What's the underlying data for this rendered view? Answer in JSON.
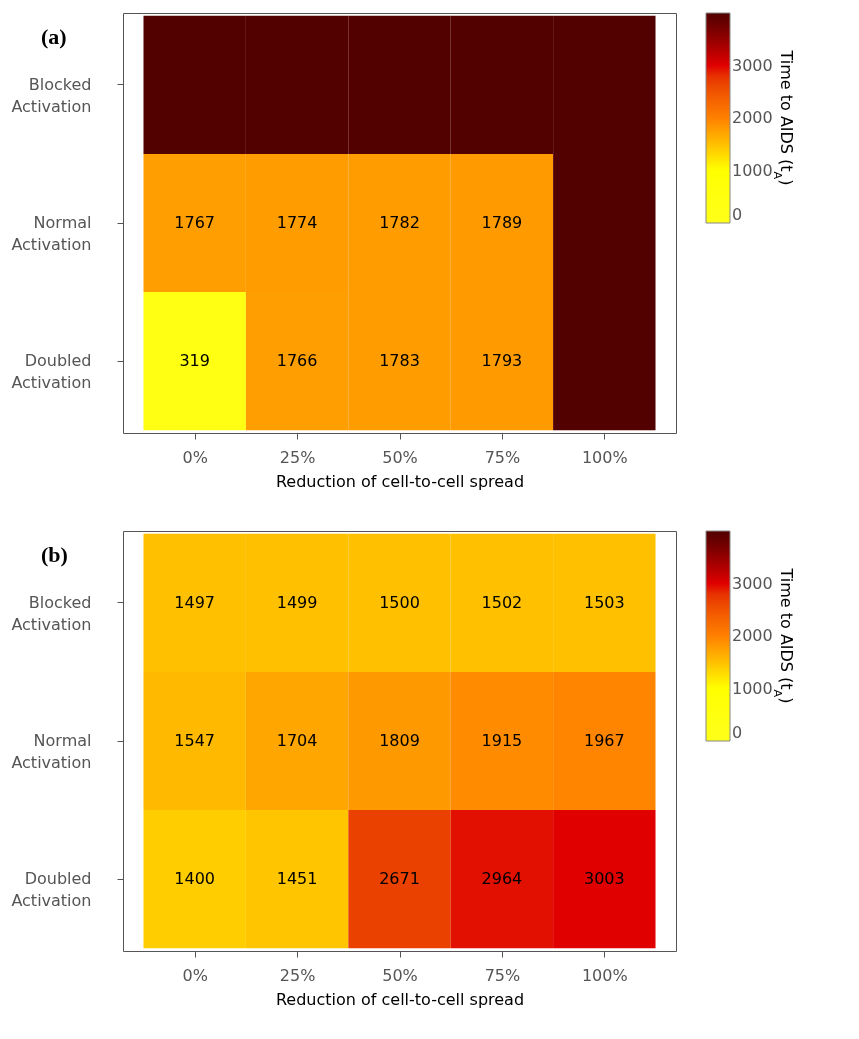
{
  "chart_data": [
    {
      "type": "heatmap",
      "title": "(a)",
      "xlabel": "Reduction of cell-to-cell spread",
      "clabel": "Time to AIDS (t$_{A}$)",
      "categories": [
        "0%",
        "25%",
        "50%",
        "75%",
        "100%"
      ],
      "y_categories": [
        "Blocked Activation",
        "Normal Activation",
        "Doubled Activation"
      ],
      "cells": [
        [
          4000,
          4000,
          4000,
          4000,
          4000
        ],
        [
          1767,
          1774,
          1782,
          1789,
          4000
        ],
        [
          319,
          1766,
          1783,
          1793,
          4000
        ]
      ],
      "cell_labels": [
        [
          null,
          null,
          null,
          null,
          null
        ],
        [
          "1767",
          "1774",
          "1782",
          "1789",
          null
        ],
        [
          "319",
          "1766",
          "1783",
          "1793",
          null
        ]
      ],
      "clim": [
        0,
        4000
      ],
      "cticks": [
        0,
        1000,
        2000,
        3000
      ]
    },
    {
      "type": "heatmap",
      "title": "(b)",
      "xlabel": "Reduction of cell-to-cell spread",
      "clabel": "Time to AIDS (t$_{A}$)",
      "categories": [
        "0%",
        "25%",
        "50%",
        "75%",
        "100%"
      ],
      "y_categories": [
        "Blocked Activation",
        "Normal Activation",
        "Doubled Activation"
      ],
      "cells": [
        [
          1497,
          1499,
          1500,
          1502,
          1503
        ],
        [
          1547,
          1704,
          1809,
          1915,
          1967
        ],
        [
          1400,
          1451,
          2671,
          2964,
          3003
        ]
      ],
      "data_labels": true,
      "clim": [
        0,
        4000
      ],
      "cticks": [
        0,
        1000,
        2000,
        3000
      ]
    }
  ]
}
